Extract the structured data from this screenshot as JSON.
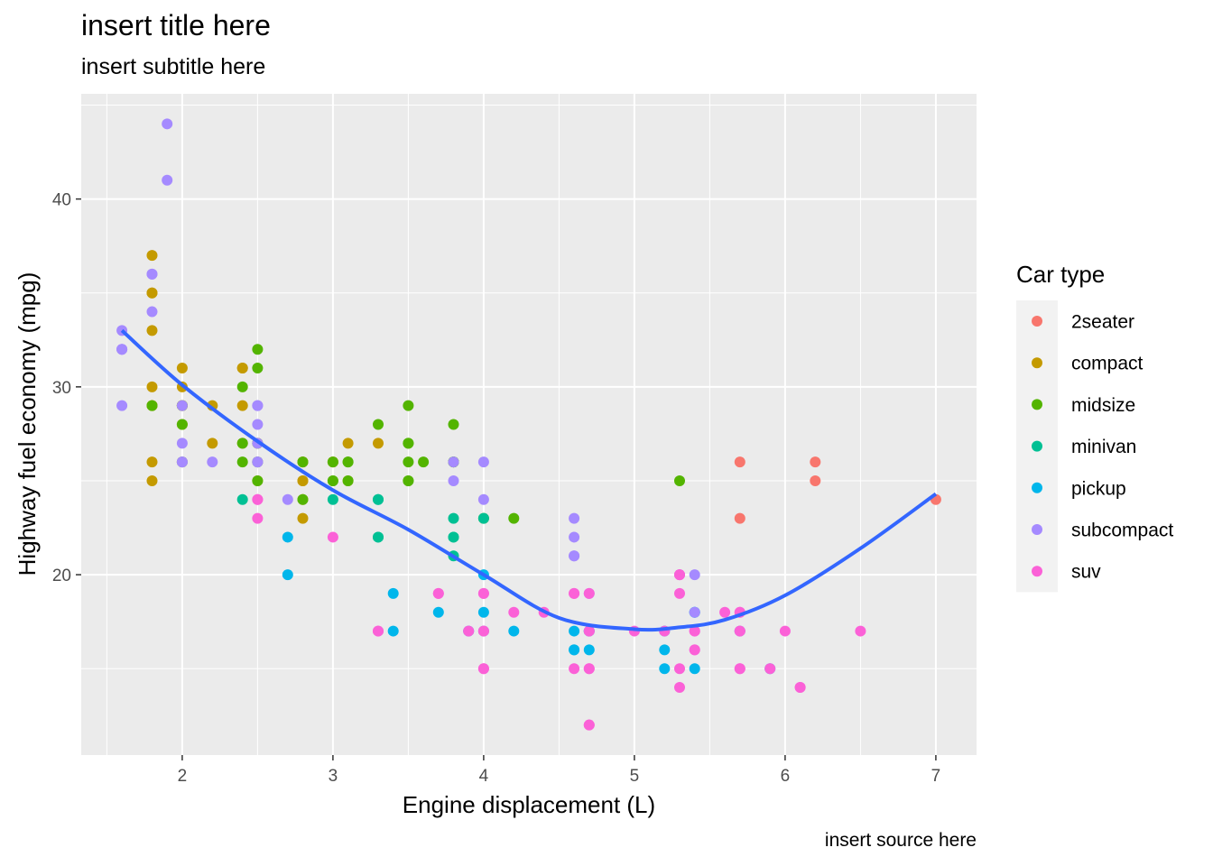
{
  "chart_data": {
    "type": "scatter",
    "title": "insert title here",
    "subtitle": "insert subtitle here",
    "caption": "insert source here",
    "xlabel": "Engine displacement (L)",
    "ylabel": "Highway fuel economy (mpg)",
    "xlim": [
      1.33,
      7.27
    ],
    "ylim": [
      10.4,
      45.6
    ],
    "x_ticks": [
      2,
      3,
      4,
      5,
      6,
      7
    ],
    "x_tick_labels": [
      "2",
      "3",
      "4",
      "5",
      "6",
      "7"
    ],
    "y_ticks": [
      20,
      30,
      40
    ],
    "y_tick_labels": [
      "20",
      "30",
      "40"
    ],
    "grid": true,
    "legend": {
      "title": "Car type",
      "placement": "right"
    },
    "series": [
      {
        "name": "2seater",
        "color": "#F8766D",
        "points": [
          [
            5.7,
            26
          ],
          [
            5.7,
            23
          ],
          [
            6.2,
            26
          ],
          [
            6.2,
            25
          ],
          [
            7.0,
            24
          ]
        ]
      },
      {
        "name": "compact",
        "color": "#C49A00",
        "points": [
          [
            1.8,
            29
          ],
          [
            1.8,
            29
          ],
          [
            2.0,
            31
          ],
          [
            2.0,
            30
          ],
          [
            2.8,
            26
          ],
          [
            2.8,
            26
          ],
          [
            3.1,
            27
          ],
          [
            1.8,
            26
          ],
          [
            1.8,
            25
          ],
          [
            2.0,
            28
          ],
          [
            2.0,
            29
          ],
          [
            2.8,
            25
          ],
          [
            2.8,
            25
          ],
          [
            3.1,
            25
          ],
          [
            2.2,
            29
          ],
          [
            2.2,
            27
          ],
          [
            2.4,
            31
          ],
          [
            2.4,
            31
          ],
          [
            3.0,
            26
          ],
          [
            3.0,
            26
          ],
          [
            3.3,
            27
          ],
          [
            1.8,
            33
          ],
          [
            1.8,
            35
          ],
          [
            1.8,
            37
          ],
          [
            1.8,
            35
          ],
          [
            2.0,
            29
          ],
          [
            2.0,
            26
          ],
          [
            2.0,
            29
          ],
          [
            2.8,
            24
          ],
          [
            2.8,
            23
          ],
          [
            1.8,
            30
          ],
          [
            2.4,
            29
          ],
          [
            2.4,
            27
          ],
          [
            2.5,
            27
          ],
          [
            2.5,
            25
          ]
        ]
      },
      {
        "name": "midsize",
        "color": "#53B400",
        "points": [
          [
            2.4,
            30
          ],
          [
            2.4,
            27
          ],
          [
            3.1,
            26
          ],
          [
            3.5,
            29
          ],
          [
            3.6,
            26
          ],
          [
            2.5,
            27
          ],
          [
            2.5,
            26
          ],
          [
            2.5,
            31
          ],
          [
            2.5,
            32
          ],
          [
            3.5,
            26
          ],
          [
            3.5,
            27
          ],
          [
            3.8,
            28
          ],
          [
            3.8,
            26
          ],
          [
            3.8,
            26
          ],
          [
            3.0,
            26
          ],
          [
            3.5,
            25
          ],
          [
            3.1,
            26
          ],
          [
            3.3,
            28
          ],
          [
            3.0,
            25
          ],
          [
            3.5,
            27
          ],
          [
            3.8,
            26
          ],
          [
            4.2,
            23
          ],
          [
            2.4,
            26
          ],
          [
            3.5,
            25
          ],
          [
            4.0,
            23
          ],
          [
            5.3,
            25
          ],
          [
            2.0,
            29
          ],
          [
            2.0,
            28
          ],
          [
            2.8,
            26
          ],
          [
            2.8,
            24
          ],
          [
            3.1,
            25
          ],
          [
            2.0,
            26
          ],
          [
            3.0,
            25
          ],
          [
            1.8,
            29
          ],
          [
            2.5,
            25
          ],
          [
            2.5,
            26
          ]
        ]
      },
      {
        "name": "minivan",
        "color": "#00C094",
        "points": [
          [
            2.4,
            24
          ],
          [
            3.0,
            24
          ],
          [
            3.3,
            22
          ],
          [
            3.3,
            22
          ],
          [
            3.3,
            24
          ],
          [
            3.3,
            24
          ],
          [
            3.8,
            22
          ],
          [
            3.8,
            21
          ],
          [
            3.8,
            22
          ],
          [
            4.0,
            23
          ],
          [
            3.8,
            23
          ]
        ]
      },
      {
        "name": "pickup",
        "color": "#00B6EB",
        "points": [
          [
            2.7,
            20
          ],
          [
            2.7,
            22
          ],
          [
            3.4,
            19
          ],
          [
            3.4,
            17
          ],
          [
            4.0,
            20
          ],
          [
            4.0,
            17
          ],
          [
            4.0,
            18
          ],
          [
            4.7,
            16
          ],
          [
            4.7,
            17
          ],
          [
            4.6,
            17
          ],
          [
            4.6,
            16
          ],
          [
            5.2,
            17
          ],
          [
            5.2,
            16
          ],
          [
            5.4,
            15
          ],
          [
            3.7,
            18
          ],
          [
            3.9,
            17
          ],
          [
            4.7,
            17
          ],
          [
            5.2,
            15
          ],
          [
            5.9,
            15
          ],
          [
            4.2,
            17
          ],
          [
            4.6,
            16
          ],
          [
            5.4,
            18
          ],
          [
            5.4,
            18
          ],
          [
            5.7,
            17
          ]
        ]
      },
      {
        "name": "subcompact",
        "color": "#A58AFF",
        "points": [
          [
            1.6,
            33
          ],
          [
            1.6,
            32
          ],
          [
            1.6,
            32
          ],
          [
            1.6,
            29
          ],
          [
            1.6,
            32
          ],
          [
            1.8,
            34
          ],
          [
            1.8,
            36
          ],
          [
            1.8,
            36
          ],
          [
            2.0,
            29
          ],
          [
            2.0,
            26
          ],
          [
            1.9,
            44
          ],
          [
            1.9,
            41
          ],
          [
            2.0,
            26
          ],
          [
            2.0,
            27
          ],
          [
            2.5,
            26
          ],
          [
            2.5,
            28
          ],
          [
            2.5,
            29
          ],
          [
            2.5,
            26
          ],
          [
            2.2,
            26
          ],
          [
            2.7,
            24
          ],
          [
            3.8,
            25
          ],
          [
            4.0,
            26
          ],
          [
            4.0,
            24
          ],
          [
            4.6,
            21
          ],
          [
            4.6,
            22
          ],
          [
            4.6,
            23
          ],
          [
            5.4,
            20
          ],
          [
            2.5,
            27
          ],
          [
            2.5,
            29
          ],
          [
            3.8,
            26
          ],
          [
            3.9,
            17
          ],
          [
            4.6,
            21
          ],
          [
            5.4,
            18
          ],
          [
            5.3,
            20
          ],
          [
            4.7,
            19
          ]
        ]
      },
      {
        "name": "suv",
        "color": "#FB61D7",
        "points": [
          [
            5.3,
            20
          ],
          [
            5.3,
            15
          ],
          [
            5.3,
            20
          ],
          [
            5.7,
            17
          ],
          [
            6.0,
            17
          ],
          [
            5.7,
            18
          ],
          [
            6.5,
            17
          ],
          [
            5.3,
            14
          ],
          [
            5.7,
            15
          ],
          [
            4.0,
            17
          ],
          [
            4.0,
            19
          ],
          [
            4.6,
            19
          ],
          [
            5.0,
            17
          ],
          [
            4.0,
            17
          ],
          [
            4.0,
            19
          ],
          [
            4.7,
            17
          ],
          [
            4.7,
            15
          ],
          [
            4.7,
            15
          ],
          [
            5.7,
            17
          ],
          [
            6.1,
            14
          ],
          [
            4.7,
            12
          ],
          [
            4.7,
            12
          ],
          [
            5.2,
            17
          ],
          [
            5.7,
            15
          ],
          [
            5.9,
            15
          ],
          [
            4.7,
            19
          ],
          [
            4.7,
            17
          ],
          [
            4.6,
            15
          ],
          [
            5.4,
            16
          ],
          [
            5.4,
            17
          ],
          [
            4.0,
            15
          ],
          [
            4.4,
            18
          ],
          [
            3.7,
            19
          ],
          [
            3.3,
            17
          ],
          [
            3.9,
            17
          ],
          [
            3.0,
            22
          ],
          [
            5.4,
            16
          ],
          [
            5.6,
            18
          ],
          [
            2.5,
            24
          ],
          [
            2.5,
            23
          ],
          [
            2.5,
            24
          ],
          [
            3.7,
            19
          ],
          [
            4.2,
            18
          ],
          [
            4.6,
            19
          ],
          [
            5.3,
            19
          ],
          [
            5.4,
            17
          ],
          [
            5.7,
            18
          ],
          [
            6.1,
            14
          ],
          [
            3.3,
            17
          ],
          [
            4.0,
            15
          ]
        ]
      }
    ],
    "smooth_line": {
      "color": "#3366FF",
      "x": [
        1.6,
        2.0,
        2.5,
        3.0,
        3.5,
        4.0,
        4.5,
        5.0,
        5.3,
        5.6,
        6.0,
        6.5,
        7.0
      ],
      "y": [
        33.0,
        30.1,
        27.1,
        24.5,
        22.4,
        20.0,
        17.7,
        17.1,
        17.2,
        17.6,
        18.9,
        21.4,
        24.3
      ]
    }
  }
}
